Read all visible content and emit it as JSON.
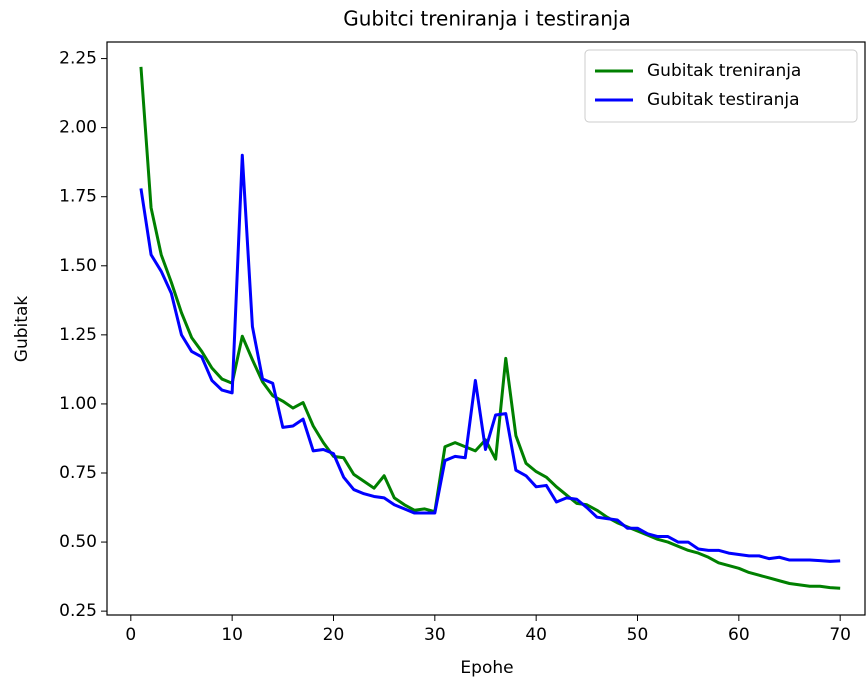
{
  "chart_data": {
    "type": "line",
    "title": "Gubitci treniranja i testiranja",
    "xlabel": "Epohe",
    "ylabel": "Gubitak",
    "x": [
      1,
      2,
      3,
      4,
      5,
      6,
      7,
      8,
      9,
      10,
      11,
      12,
      13,
      14,
      15,
      16,
      17,
      18,
      19,
      20,
      21,
      22,
      23,
      24,
      25,
      26,
      27,
      28,
      29,
      30,
      31,
      32,
      33,
      34,
      35,
      36,
      37,
      38,
      39,
      40,
      41,
      42,
      43,
      44,
      45,
      46,
      47,
      48,
      49,
      50,
      51,
      52,
      53,
      54,
      55,
      56,
      57,
      58,
      59,
      60,
      61,
      62,
      63,
      64,
      65,
      66,
      67,
      68,
      69,
      70
    ],
    "series": [
      {
        "name": "Gubitak treniranja",
        "color": "#008000",
        "values": [
          2.22,
          1.71,
          1.54,
          1.44,
          1.33,
          1.24,
          1.19,
          1.13,
          1.09,
          1.075,
          1.245,
          1.16,
          1.08,
          1.03,
          1.01,
          0.985,
          1.005,
          0.92,
          0.86,
          0.81,
          0.805,
          0.745,
          0.72,
          0.695,
          0.74,
          0.66,
          0.635,
          0.615,
          0.62,
          0.61,
          0.845,
          0.86,
          0.845,
          0.83,
          0.87,
          0.8,
          1.165,
          0.885,
          0.785,
          0.755,
          0.735,
          0.7,
          0.67,
          0.64,
          0.635,
          0.615,
          0.59,
          0.57,
          0.555,
          0.54,
          0.525,
          0.51,
          0.5,
          0.485,
          0.47,
          0.46,
          0.445,
          0.425,
          0.415,
          0.405,
          0.39,
          0.38,
          0.37,
          0.36,
          0.35,
          0.345,
          0.34,
          0.34,
          0.335,
          0.333
        ]
      },
      {
        "name": "Gubitak testiranja",
        "color": "#0000ff",
        "values": [
          1.78,
          1.54,
          1.48,
          1.4,
          1.25,
          1.19,
          1.17,
          1.085,
          1.05,
          1.04,
          1.9,
          1.28,
          1.09,
          1.075,
          0.915,
          0.92,
          0.945,
          0.83,
          0.835,
          0.82,
          0.735,
          0.69,
          0.675,
          0.665,
          0.66,
          0.635,
          0.62,
          0.605,
          0.605,
          0.605,
          0.795,
          0.81,
          0.805,
          1.085,
          0.835,
          0.96,
          0.965,
          0.76,
          0.74,
          0.7,
          0.705,
          0.645,
          0.66,
          0.655,
          0.625,
          0.59,
          0.585,
          0.58,
          0.55,
          0.55,
          0.53,
          0.52,
          0.52,
          0.5,
          0.5,
          0.475,
          0.47,
          0.47,
          0.46,
          0.455,
          0.45,
          0.45,
          0.44,
          0.445,
          0.435,
          0.435,
          0.435,
          0.433,
          0.43,
          0.432
        ]
      }
    ],
    "xlim": [
      -2.35,
      72.45
    ],
    "xticks": [
      0,
      10,
      20,
      30,
      40,
      50,
      60,
      70
    ],
    "ylim": [
      0.236,
      2.31
    ],
    "yticks": [
      {
        "value": 0.25,
        "label": "0.25"
      },
      {
        "value": 0.5,
        "label": "0.50"
      },
      {
        "value": 0.75,
        "label": "0.75"
      },
      {
        "value": 1,
        "label": "1.00"
      },
      {
        "value": 1.25,
        "label": "1.25"
      },
      {
        "value": 1.5,
        "label": "1.50"
      },
      {
        "value": 1.75,
        "label": "1.75"
      },
      {
        "value": 2,
        "label": "2.00"
      },
      {
        "value": 2.25,
        "label": "2.25"
      }
    ],
    "legend": "upper right"
  }
}
